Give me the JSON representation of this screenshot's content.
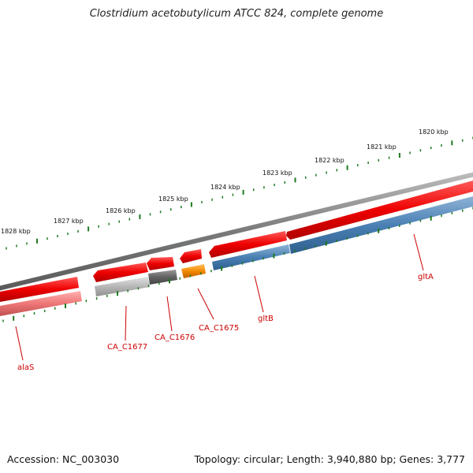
{
  "title": "Clostridium acetobutylicum ATCC 824, complete genome",
  "accession": "Accession: NC_003030",
  "topology": "Topology: circular; Length: 3,940,880 bp; Genes: 3,777",
  "ruler": [
    {
      "label": "1820 kbp"
    },
    {
      "label": "1821 kbp"
    },
    {
      "label": "1822 kbp"
    },
    {
      "label": "1823 kbp"
    },
    {
      "label": "1824 kbp"
    },
    {
      "label": "1825 kbp"
    },
    {
      "label": "1826 kbp"
    },
    {
      "label": "1827 kbp"
    },
    {
      "label": "1828 kbp"
    }
  ],
  "genes": [
    {
      "label": "gltA"
    },
    {
      "label": "gltB"
    },
    {
      "label": "CA_C1675"
    },
    {
      "label": "CA_C1676"
    },
    {
      "label": "CA_C1677"
    },
    {
      "label": "alaS"
    }
  ],
  "colors": {
    "backbone": "#7a7a7a",
    "cds": "#ee0000",
    "gene_label": "#cc0000",
    "tick": "#1f7a1f",
    "gltA_feature": "#4a80b4",
    "CA_C1675_feature": "#f28a00",
    "CA_C1676_feature": "#666666",
    "CA_C1677_feature": "#b0b0b0",
    "alaS_feature": "#ee7777"
  }
}
